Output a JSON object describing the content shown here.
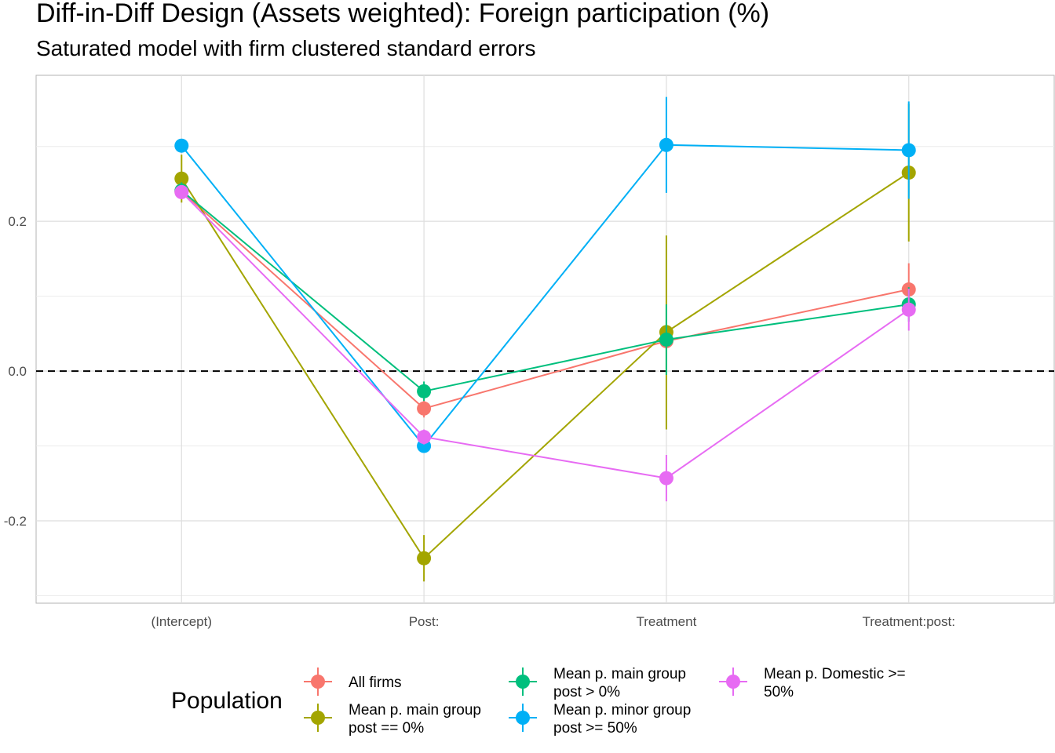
{
  "chart_data": {
    "type": "line",
    "title": "Diff-in-Diff Design (Assets weighted): Foreign participation (%)",
    "subtitle": "Saturated model with firm clustered standard errors",
    "xlabel": "",
    "ylabel": "",
    "categories": [
      "(Intercept)",
      "Post:",
      "Treatment",
      "Treatment:post:"
    ],
    "ylim": [
      -0.31,
      0.395
    ],
    "y_ticks": [
      -0.2,
      0.0,
      0.2
    ],
    "y_tick_labels": [
      "-0.2",
      "0.0",
      "0.2"
    ],
    "reference_line": {
      "y": 0,
      "style": "dashed"
    },
    "grid": true,
    "legend": {
      "title": "Population",
      "position": "bottom"
    },
    "series": [
      {
        "name": "All firms",
        "color": "#F8766D",
        "values": [
          0.24,
          -0.05,
          0.04,
          0.109
        ],
        "lower": [
          0.23,
          -0.062,
          0.03,
          0.074
        ],
        "upper": [
          0.252,
          -0.038,
          0.052,
          0.144
        ]
      },
      {
        "name": "Mean p. main group post == 0%",
        "color": "#A3A500",
        "values": [
          0.257,
          -0.25,
          0.052,
          0.265
        ],
        "lower": [
          0.225,
          -0.281,
          -0.078,
          0.173
        ],
        "upper": [
          0.289,
          -0.219,
          0.181,
          0.357
        ]
      },
      {
        "name": "Mean p. main group post > 0%",
        "color": "#00BF7D",
        "values": [
          0.241,
          -0.027,
          0.042,
          0.089
        ],
        "lower": [
          0.23,
          -0.04,
          -0.005,
          0.066
        ],
        "upper": [
          0.252,
          -0.014,
          0.089,
          0.112
        ]
      },
      {
        "name": "Mean p. minor group post >= 50%",
        "color": "#00B0F6",
        "values": [
          0.301,
          -0.1,
          0.302,
          0.295
        ],
        "lower": [
          0.295,
          -0.108,
          0.238,
          0.23
        ],
        "upper": [
          0.307,
          -0.092,
          0.366,
          0.36
        ]
      },
      {
        "name": "Mean p. Domestic >= 50%",
        "color": "#E76BF3",
        "values": [
          0.239,
          -0.088,
          -0.143,
          0.082
        ],
        "lower": [
          0.23,
          -0.098,
          -0.174,
          0.054
        ],
        "upper": [
          0.248,
          -0.078,
          -0.112,
          0.11
        ]
      }
    ]
  },
  "legend_layout": [
    {
      "series": 0,
      "lines": [
        "All firms"
      ]
    },
    {
      "series": 1,
      "lines": [
        "Mean p. main group",
        "post == 0%"
      ]
    },
    {
      "series": 2,
      "lines": [
        "Mean p. main group",
        "post > 0%"
      ]
    },
    {
      "series": 3,
      "lines": [
        "Mean p. minor group",
        "post >= 50%"
      ]
    },
    {
      "series": 4,
      "lines": [
        "Mean p. Domestic >=",
        "50%"
      ]
    }
  ]
}
